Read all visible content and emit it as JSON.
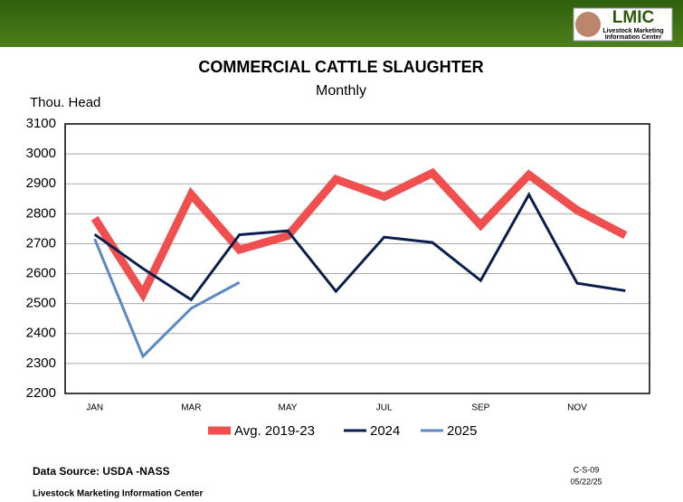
{
  "chart_data": {
    "type": "line",
    "title": "COMMERCIAL CATTLE SLAUGHTER",
    "subtitle": "Monthly",
    "y_label": "Thou. Head",
    "categories": [
      "JAN",
      null,
      "MAR",
      null,
      "MAY",
      null,
      "JUL",
      null,
      "SEP",
      null,
      "NOV",
      null
    ],
    "series": [
      {
        "name": "Avg. 2019-23",
        "color": "#f04f4f",
        "values": [
          2785,
          2532,
          2865,
          2680,
          2726,
          2915,
          2857,
          2936,
          2762,
          2930,
          2812,
          2728
        ]
      },
      {
        "name": "2024",
        "color": "#0b1f4d",
        "values": [
          2731,
          2617,
          2513,
          2730,
          2743,
          2541,
          2722,
          2704,
          2577,
          2864,
          2568,
          2543
        ]
      },
      {
        "name": "2025",
        "color": "#5a89c4",
        "values": [
          2716,
          2324,
          2484,
          2571,
          null,
          null,
          null,
          null,
          null,
          null,
          null,
          null
        ]
      }
    ],
    "ylim": [
      2200,
      3100
    ],
    "yticks": [
      2200,
      2300,
      2400,
      2500,
      2600,
      2700,
      2800,
      2900,
      3000,
      3100
    ],
    "grid": true,
    "legend": "bottom"
  },
  "logo": {
    "name": "LMIC",
    "line1": "Livestock Marketing",
    "line2": "Information Center"
  },
  "footer": {
    "source": "Data Source: USDA -NASS",
    "org": "Livestock Marketing Information Center",
    "code": "C-S-09",
    "date": "05/22/25"
  }
}
